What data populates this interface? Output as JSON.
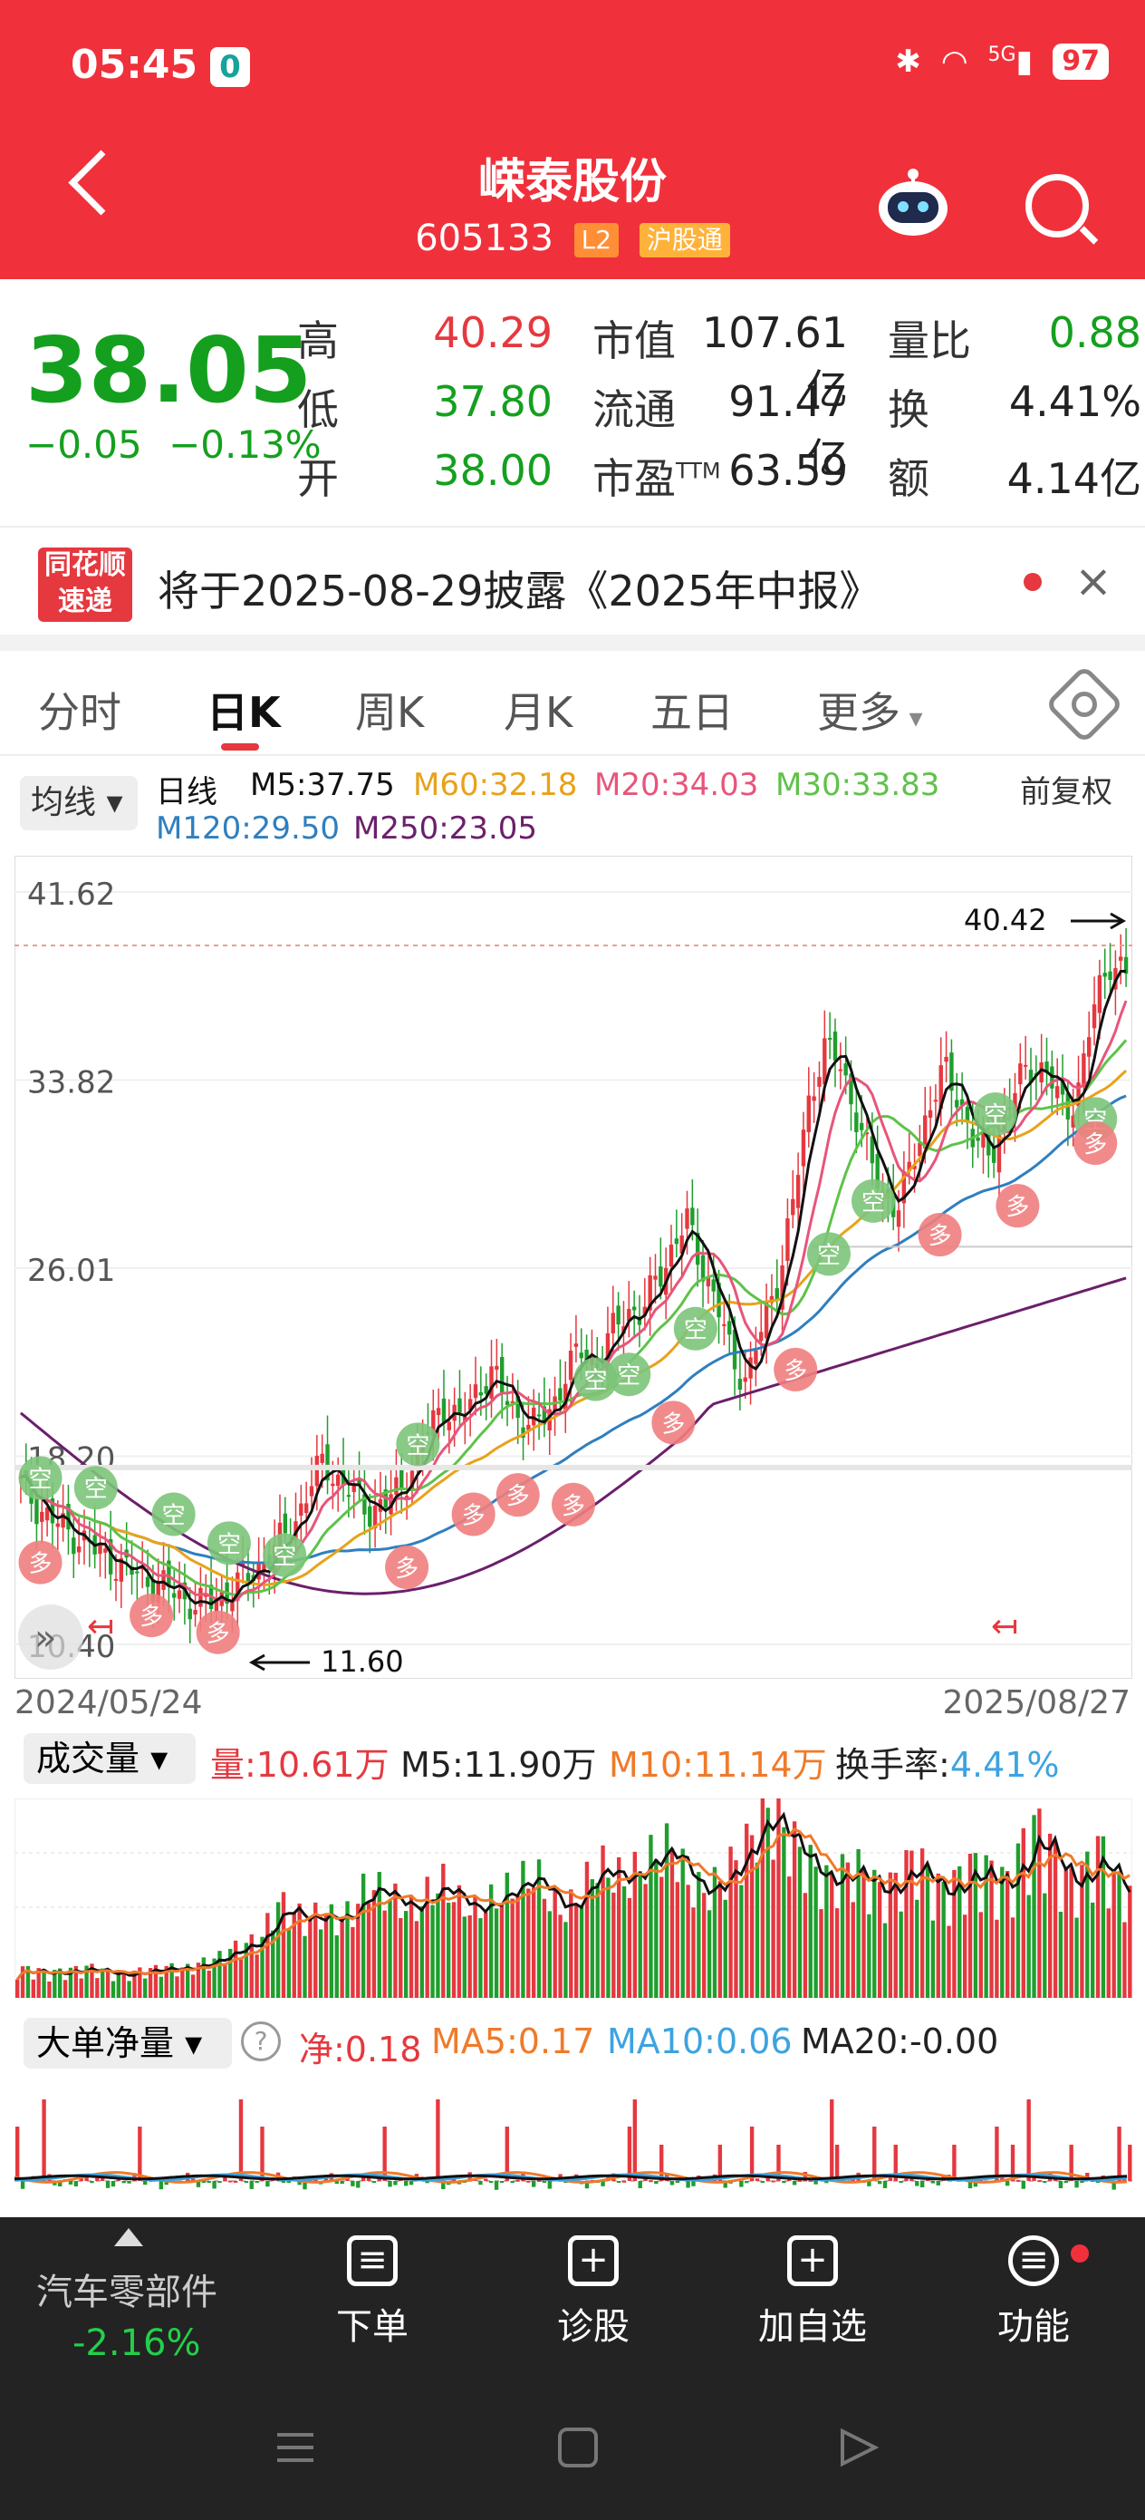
{
  "status": {
    "time": "05:45",
    "app_badge": "0",
    "battery": "97",
    "network": "5G"
  },
  "header": {
    "name": "嵘泰股份",
    "code": "605133",
    "tag_l2": "L2",
    "tag_hsgt": "沪股通"
  },
  "quote": {
    "price": "38.05",
    "change": "−0.05",
    "change_pct": "−0.13%",
    "high_label": "高",
    "high": "40.29",
    "low_label": "低",
    "low": "37.80",
    "open_label": "开",
    "open": "38.00",
    "mcap_label": "市值",
    "mcap": "107.61亿",
    "float_label": "流通",
    "float": "91.47亿",
    "pe_label": "市盈",
    "pe_sup": "TTM",
    "pe": "63.59",
    "vr_label": "量比",
    "vr": "0.88",
    "turnover_label": "换",
    "turnover": "4.41%",
    "amount_label": "额",
    "amount": "4.14亿"
  },
  "notice": {
    "logo_line1": "同花顺",
    "logo_line2": "速递",
    "text": "将于2025-08-29披露《2025年中报》"
  },
  "tabs": [
    "分时",
    "日K",
    "周K",
    "月K",
    "五日",
    "更多"
  ],
  "ma_legend": {
    "box": "均线",
    "kind": "日线",
    "m5": "M5:37.75",
    "m60": "M60:32.18",
    "m20": "M20:34.03",
    "m30": "M30:33.83",
    "fq": "前复权",
    "m120": "M120:29.50",
    "m250": "M250:23.05",
    "colors": {
      "m5": "#111111",
      "m60": "#e8a21a",
      "m20": "#e8557a",
      "m30": "#5fc24a",
      "m120": "#2f7fbf",
      "m250": "#6b1f6b"
    }
  },
  "chart_data": {
    "type": "candlestick",
    "y_ticks": [
      "41.62",
      "33.82",
      "26.01",
      "18.20",
      "10.40"
    ],
    "ylim": [
      10.4,
      41.62
    ],
    "date_start": "2024/05/24",
    "date_end": "2025/08/27",
    "max_label": "40.42",
    "min_label": "11.60",
    "close_series": [
      17,
      16.2,
      15.6,
      15.1,
      14.8,
      14.2,
      13.9,
      13.5,
      13.2,
      12.9,
      12.6,
      12.2,
      12.0,
      12.3,
      12.7,
      13.2,
      13.8,
      14.5,
      15.4,
      16.8,
      18.0,
      17.2,
      16.6,
      16.0,
      16.2,
      16.8,
      18.0,
      19.4,
      20.4,
      19.6,
      20.8,
      21.8,
      20.6,
      19.8,
      19.4,
      20.2,
      21.6,
      22.6,
      22.0,
      23.2,
      24.4,
      24.0,
      25.6,
      26.8,
      27.9,
      26.2,
      24.4,
      22.2,
      21.4,
      23.6,
      25.6,
      28.6,
      32.8,
      35.2,
      34.6,
      32.8,
      30.6,
      29.0,
      28.6,
      30.6,
      32.8,
      34.2,
      33.0,
      31.2,
      30.6,
      32.4,
      33.8,
      34.6,
      33.8,
      32.4,
      33.8,
      37.2,
      38.9,
      38.05
    ],
    "sample_volumes": [
      3,
      3,
      2.6,
      2.8,
      3,
      3.2,
      2.6,
      2.4,
      2.8,
      3,
      3.2,
      3,
      3.6,
      4,
      5,
      5.6,
      6,
      10,
      9,
      8,
      9,
      8,
      9,
      12,
      11,
      10,
      9,
      11,
      12,
      10,
      9,
      10,
      11,
      12,
      13,
      10,
      9,
      11,
      14,
      13,
      12,
      14,
      15,
      16,
      12,
      11,
      12,
      14,
      16,
      20,
      18,
      16,
      14,
      12,
      13,
      14,
      12,
      11,
      13,
      15,
      12,
      11,
      13,
      14,
      13,
      12,
      16,
      18,
      15,
      12,
      13,
      16,
      12,
      11
    ]
  },
  "volume": {
    "box": "成交量",
    "vol": "量:10.61万",
    "m5": "M5:11.90万",
    "m10": "M10:11.14万",
    "hs": "换手率:",
    "hs_val": "4.41%"
  },
  "big_order": {
    "box": "大单净量",
    "help": "?",
    "net": "净:0.18",
    "ma5": "MA5:0.17",
    "ma10": "MA10:0.06",
    "ma20": "MA20:-0.00"
  },
  "bottom": {
    "sector": "汽车零部件",
    "sector_chg": "-2.16%",
    "order": "下单",
    "diag": "诊股",
    "add": "加自选",
    "func": "功能"
  }
}
